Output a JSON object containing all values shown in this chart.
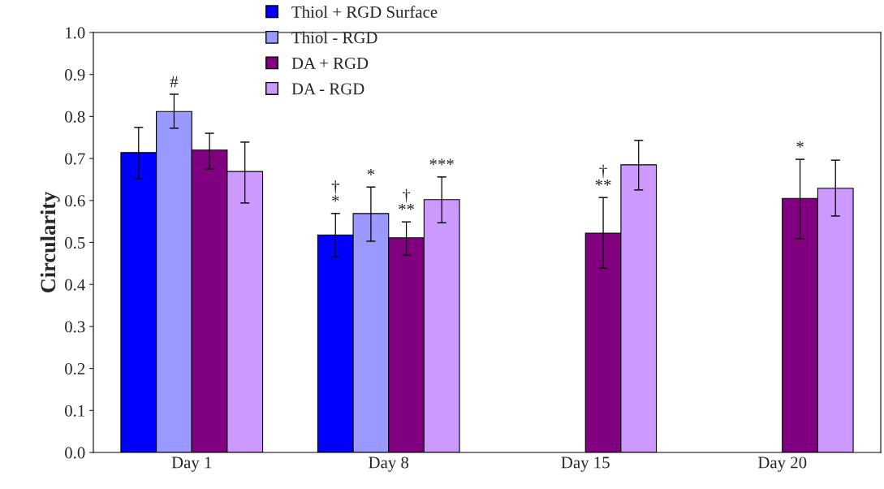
{
  "chart_data": {
    "type": "bar",
    "ylabel": "Circularity",
    "categories": [
      "Day 1",
      "Day 8",
      "Day 15",
      "Day 20"
    ],
    "series": [
      {
        "name": "Thiol + RGD Surface",
        "color": "#0000ff",
        "values": [
          0.714,
          0.518,
          null,
          null
        ],
        "errors": [
          [
            0.652,
            0.774
          ],
          [
            0.466,
            0.569
          ],
          null,
          null
        ]
      },
      {
        "name": "Thiol - RGD",
        "color": "#9999ff",
        "values": [
          0.812,
          0.569,
          null,
          null
        ],
        "errors": [
          [
            0.772,
            0.853
          ],
          [
            0.503,
            0.632
          ],
          null,
          null
        ]
      },
      {
        "name": "DA + RGD",
        "color": "#800080",
        "values": [
          0.72,
          0.511,
          0.522,
          0.605
        ],
        "errors": [
          [
            0.675,
            0.76
          ],
          [
            0.47,
            0.549
          ],
          [
            0.439,
            0.607
          ],
          [
            0.509,
            0.698
          ]
        ]
      },
      {
        "name": "DA - RGD",
        "color": "#cc99ff",
        "values": [
          0.669,
          0.602,
          0.685,
          0.629
        ],
        "errors": [
          [
            0.594,
            0.739
          ],
          [
            0.547,
            0.656
          ],
          [
            0.625,
            0.743
          ],
          [
            0.563,
            0.696
          ]
        ]
      }
    ],
    "annotations": [
      "#",
      "†\n*",
      "*",
      "†\n**",
      "***",
      "†\n**",
      "*"
    ],
    "ylim": [
      0,
      1
    ],
    "yticks": [
      {
        "value": 0,
        "label": "0.0"
      },
      0.1,
      0.2,
      0.3,
      0.4,
      0.5,
      0.6,
      0.7,
      0.8,
      0.9,
      {
        "value": 1,
        "label": "1.0"
      }
    ],
    "grid": false,
    "legend": "top"
  }
}
